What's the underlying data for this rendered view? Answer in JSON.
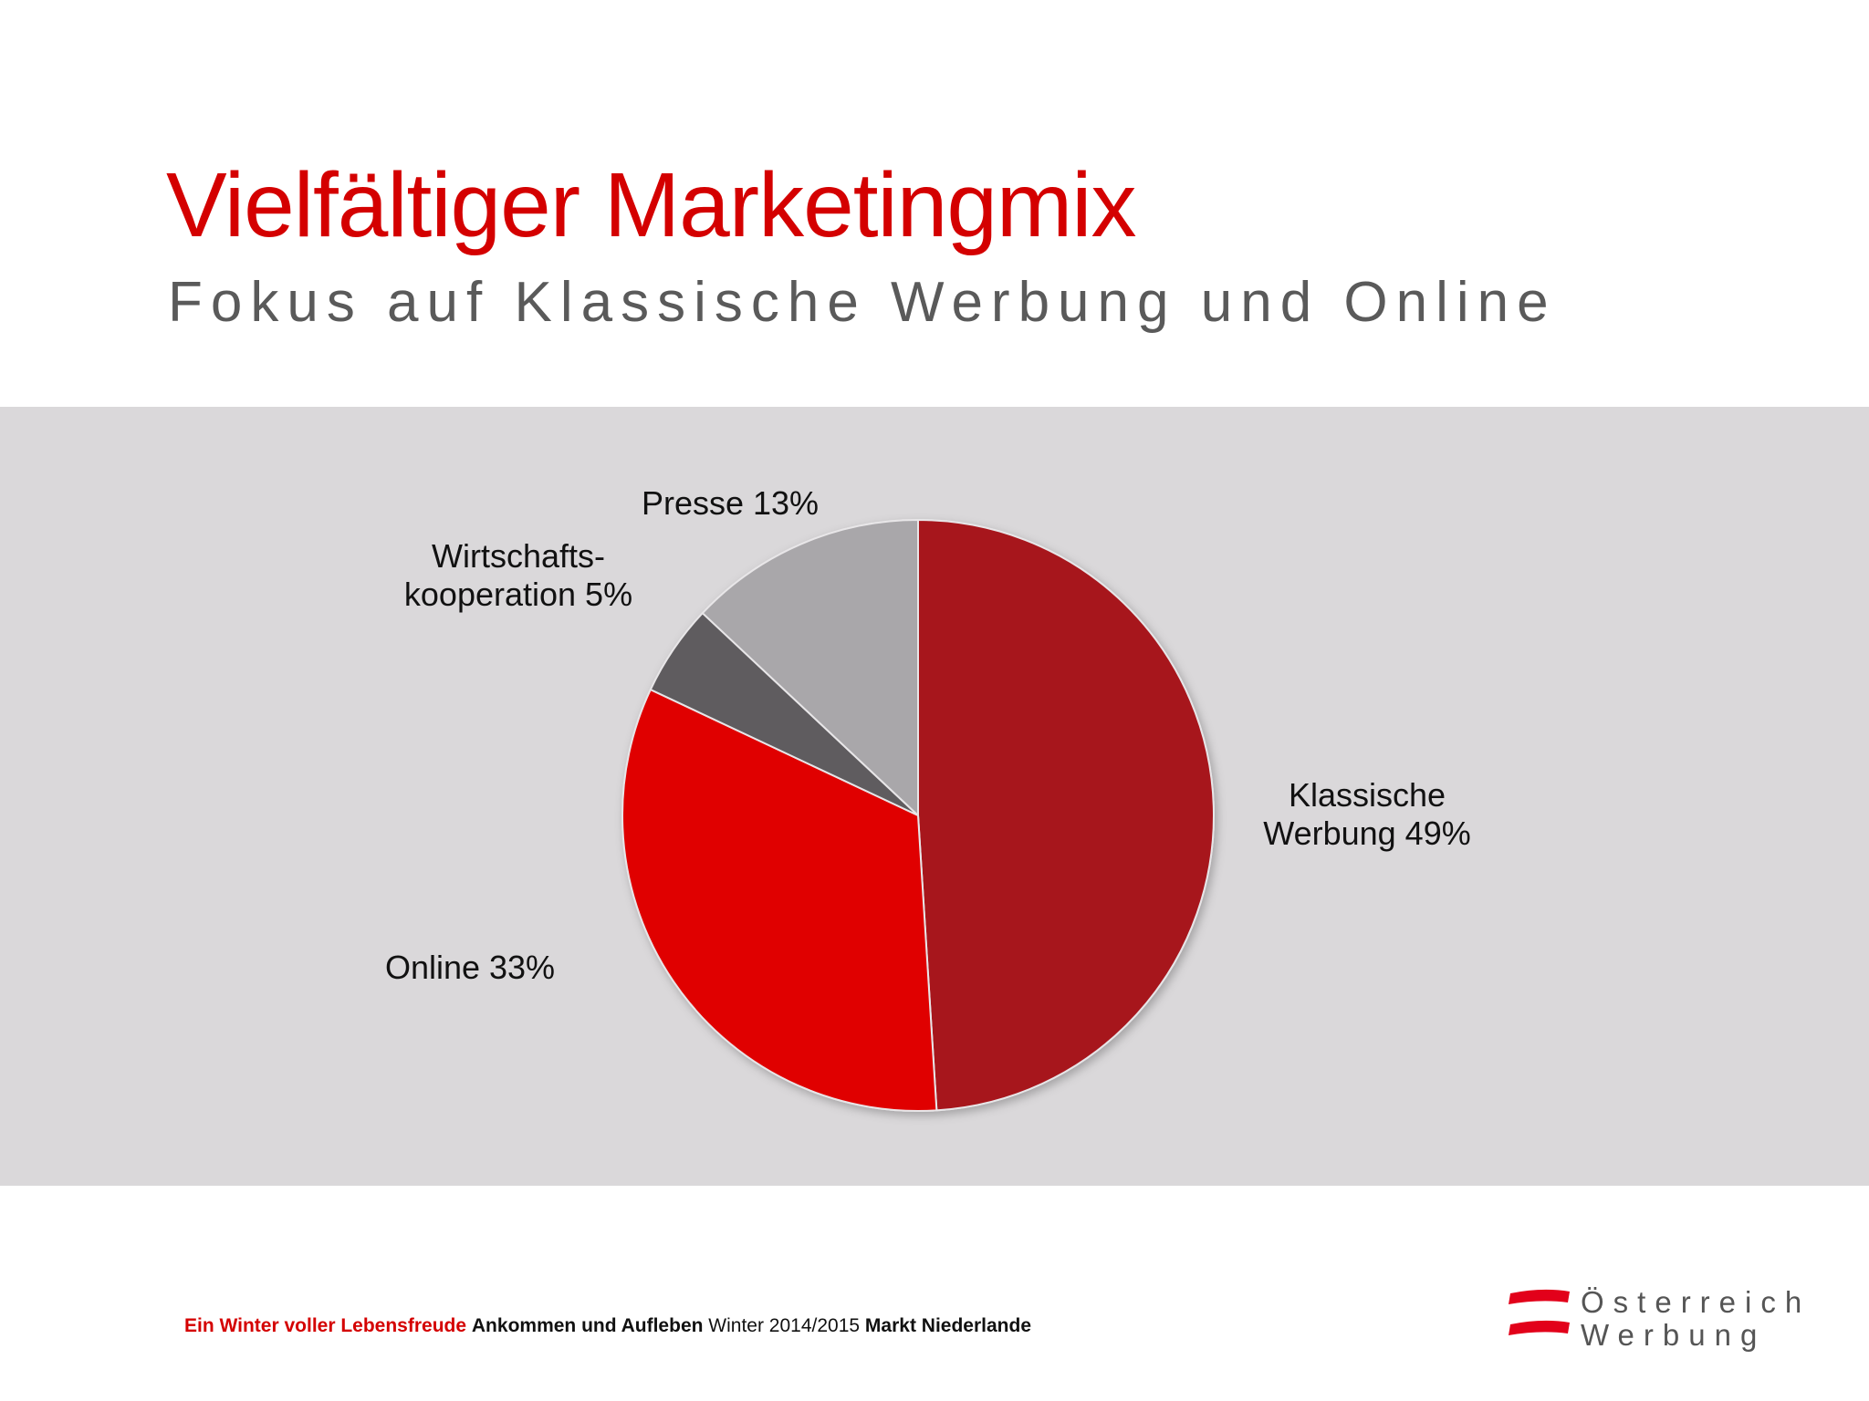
{
  "slide": {
    "title": "Vielfältiger Marketingmix",
    "subtitle": "Fokus auf Klassische Werbung und Online"
  },
  "chart_data": {
    "type": "pie",
    "slices": [
      {
        "label_lines": [
          "Klassische",
          "Werbung 49%"
        ],
        "value": 49,
        "color": "#a7161d"
      },
      {
        "label_lines": [
          "Online 33%"
        ],
        "value": 33,
        "color": "#e00000"
      },
      {
        "label_lines": [
          "Wirtschafts-",
          "kooperation 5%"
        ],
        "value": 5,
        "color": "#5e5b5e"
      },
      {
        "label_lines": [
          "Presse 13%"
        ],
        "value": 13,
        "color": "#a9a7aa"
      }
    ],
    "start": "12 o'clock",
    "direction": "clockwise"
  },
  "footer": {
    "campaign": "Ein Winter voller Lebensfreude",
    "theme": "Ankommen und Aufleben",
    "season": "Winter 2014/2015",
    "market_label": "Markt",
    "market": "Niederlande"
  },
  "logo": {
    "line1": "Österreich",
    "line2": "Werbung",
    "colors": [
      "#e2001a",
      "#ffffff"
    ]
  }
}
